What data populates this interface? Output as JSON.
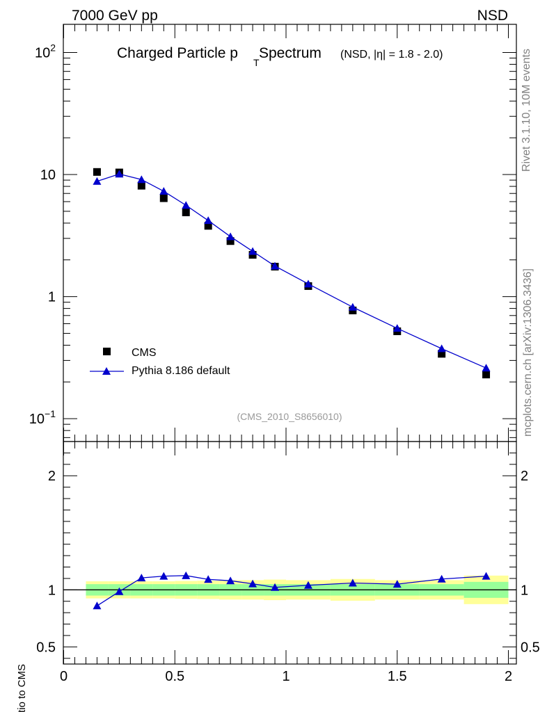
{
  "header": {
    "left": "7000 GeV pp",
    "right": "NSD"
  },
  "side_labels": {
    "rivet": "Rivet 3.1.10,  10M events",
    "mcplots": "mcplots.cern.ch [arXiv:1306.3436]"
  },
  "chart_data": [
    {
      "type": "scatter",
      "title": {
        "main": "Charged Particle p",
        "sub": "T",
        "main2": " Spectrum",
        "extra": "(NSD, |η| = 1.8 - 2.0)"
      },
      "analysis_tag": "(CMS_2010_S8656010)",
      "yscale": "log",
      "ylim": [
        0.065,
        170
      ],
      "xlim": [
        0,
        2
      ],
      "yticks": [
        {
          "value": 100,
          "base": "10",
          "exp": "2"
        },
        {
          "value": 10,
          "base": "10",
          "exp": ""
        },
        {
          "value": 1,
          "base": "1",
          "exp": ""
        },
        {
          "value": 0.1,
          "base": "10",
          "exp": "−1"
        }
      ],
      "legend_position": "bottom-left",
      "series": [
        {
          "name": "CMS",
          "marker": "square",
          "color": "#000000",
          "x": [
            0.15,
            0.25,
            0.35,
            0.45,
            0.55,
            0.65,
            0.75,
            0.85,
            0.95,
            1.1,
            1.3,
            1.5,
            1.7,
            1.9
          ],
          "y": [
            10.5,
            10.4,
            8.1,
            6.4,
            4.9,
            3.8,
            2.85,
            2.2,
            1.76,
            1.22,
            0.77,
            0.52,
            0.34,
            0.23
          ]
        },
        {
          "name": "Pythia 8.186 default",
          "marker": "triangle",
          "color": "#0000cc",
          "x": [
            0.15,
            0.25,
            0.35,
            0.45,
            0.55,
            0.65,
            0.75,
            0.85,
            0.95,
            1.1,
            1.3,
            1.5,
            1.7,
            1.9
          ],
          "y": [
            8.8,
            10.1,
            9.1,
            7.3,
            5.6,
            4.2,
            3.1,
            2.35,
            1.78,
            1.27,
            0.82,
            0.55,
            0.375,
            0.26
          ]
        }
      ]
    },
    {
      "type": "line",
      "ylabel": "Ratio to CMS",
      "xlabel": "",
      "xlim": [
        0,
        2
      ],
      "ylim": [
        0.35,
        2.3
      ],
      "yticks": [
        0.5,
        1,
        2
      ],
      "ytick_labels": [
        "0.5",
        "1",
        "2"
      ],
      "xticks": [
        0,
        0.5,
        1,
        1.5,
        2
      ],
      "xtick_labels": [
        "0",
        "0.5",
        "1",
        "1.5",
        "2"
      ],
      "bands": [
        {
          "x0": 0.1,
          "x1": 0.2,
          "stat": 0.05,
          "tot": 0.075
        },
        {
          "x0": 0.2,
          "x1": 0.3,
          "stat": 0.05,
          "tot": 0.075
        },
        {
          "x0": 0.3,
          "x1": 0.4,
          "stat": 0.05,
          "tot": 0.075
        },
        {
          "x0": 0.4,
          "x1": 0.5,
          "stat": 0.05,
          "tot": 0.075
        },
        {
          "x0": 0.5,
          "x1": 0.6,
          "stat": 0.05,
          "tot": 0.078
        },
        {
          "x0": 0.6,
          "x1": 0.7,
          "stat": 0.05,
          "tot": 0.08
        },
        {
          "x0": 0.7,
          "x1": 0.8,
          "stat": 0.05,
          "tot": 0.085
        },
        {
          "x0": 0.8,
          "x1": 0.9,
          "stat": 0.05,
          "tot": 0.085
        },
        {
          "x0": 0.9,
          "x1": 1.0,
          "stat": 0.05,
          "tot": 0.09
        },
        {
          "x0": 1.0,
          "x1": 1.2,
          "stat": 0.05,
          "tot": 0.085
        },
        {
          "x0": 1.2,
          "x1": 1.4,
          "stat": 0.05,
          "tot": 0.095
        },
        {
          "x0": 1.4,
          "x1": 1.6,
          "stat": 0.05,
          "tot": 0.085
        },
        {
          "x0": 1.6,
          "x1": 1.8,
          "stat": 0.05,
          "tot": 0.085
        },
        {
          "x0": 1.8,
          "x1": 2.0,
          "stat": 0.07,
          "tot": 0.125
        }
      ],
      "series": [
        {
          "name": "Pythia 8.186 default",
          "color": "#0000cc",
          "x": [
            0.15,
            0.25,
            0.35,
            0.45,
            0.55,
            0.65,
            0.75,
            0.85,
            0.95,
            1.1,
            1.3,
            1.5,
            1.7,
            1.9
          ],
          "y": [
            0.86,
            0.985,
            1.105,
            1.12,
            1.125,
            1.092,
            1.08,
            1.053,
            1.022,
            1.04,
            1.06,
            1.05,
            1.095,
            1.12
          ]
        }
      ]
    }
  ],
  "colors": {
    "band_total": "#ffff99",
    "band_stat": "#99ff99",
    "mc": "#0000cc",
    "data": "#000000",
    "side_text": "#808080",
    "tag_text": "#999999"
  }
}
